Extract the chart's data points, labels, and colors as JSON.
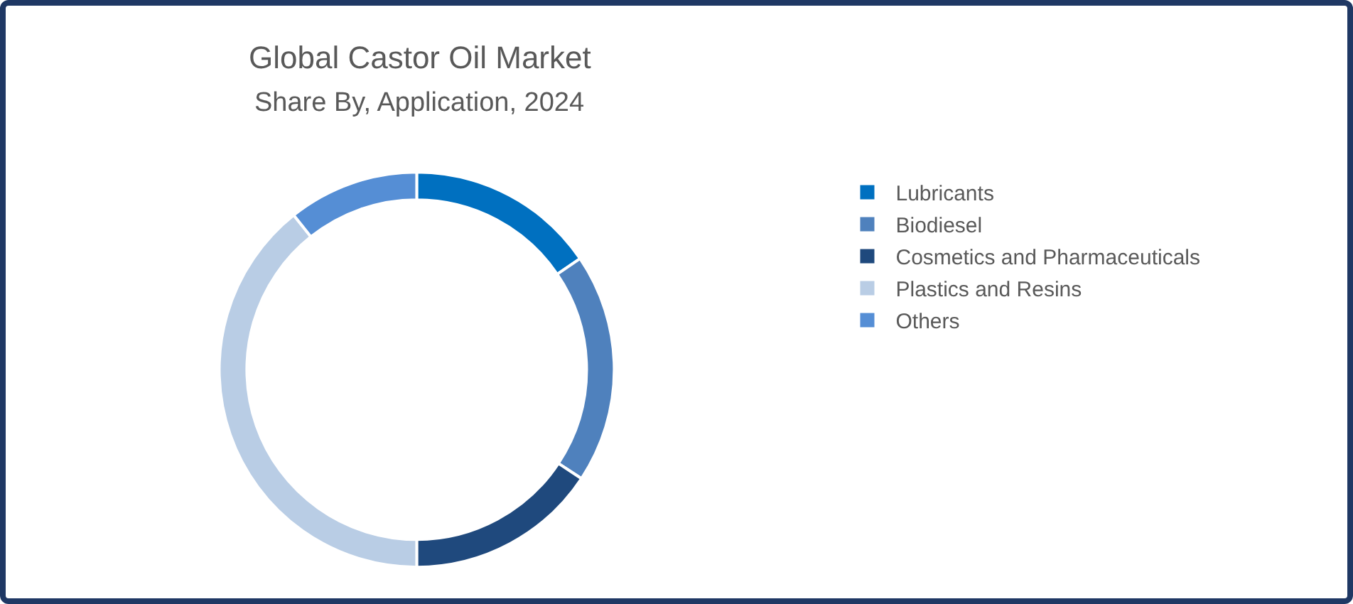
{
  "chart_data": {
    "type": "donut",
    "title": "Global Castor Oil Market",
    "subtitle": "Share By, Application, 2024",
    "categories": [
      "Lubricants",
      "Biodiesel",
      "Cosmetics and Pharmaceuticals",
      "Plastics and Resins",
      "Others"
    ],
    "values": [
      15.5,
      18.8,
      15.7,
      39.3,
      10.7
    ],
    "colors": [
      "#0070c0",
      "#4f81bd",
      "#1f497d",
      "#b9cde5",
      "#558ed5"
    ],
    "legend": "right"
  }
}
